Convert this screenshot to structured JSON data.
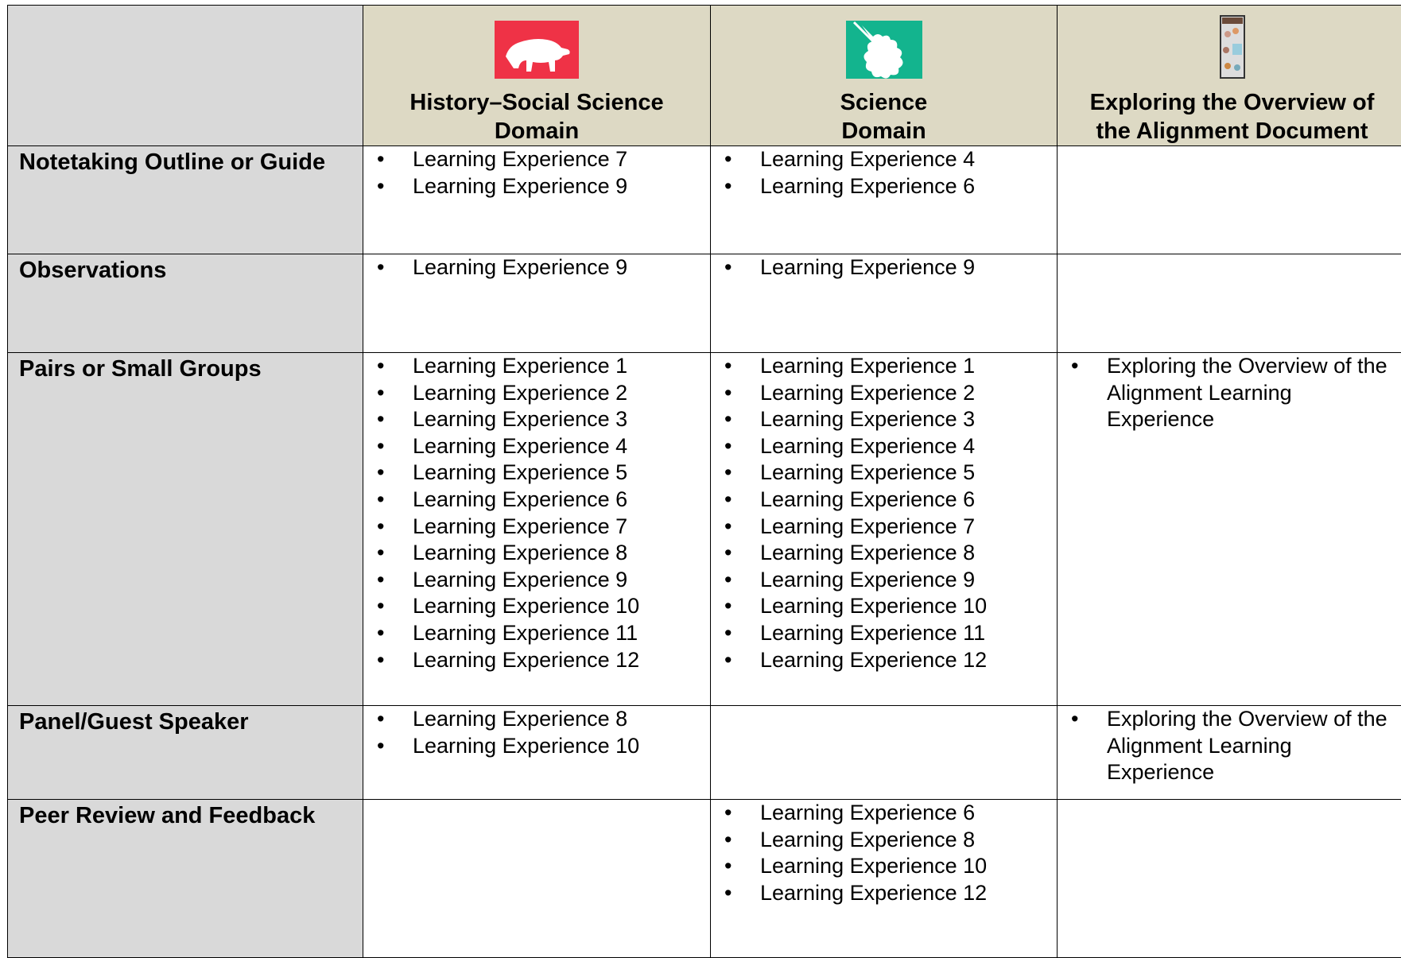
{
  "table": {
    "headers": [
      "History–Social Science\nDomain",
      "Science\nDomain",
      "Exploring the Overview of\nthe Alignment Document"
    ],
    "rows": [
      {
        "label": "Notetaking Outline or Guide",
        "cells": [
          [
            "Learning Experience 7",
            "Learning Experience 9"
          ],
          [
            "Learning Experience 4",
            "Learning Experience 6"
          ],
          []
        ]
      },
      {
        "label": "Observations",
        "cells": [
          [
            "Learning Experience 9"
          ],
          [
            "Learning Experience 9"
          ],
          []
        ]
      },
      {
        "label": "Pairs or Small Groups",
        "cells": [
          [
            "Learning Experience 1",
            "Learning Experience 2",
            "Learning Experience 3",
            "Learning Experience 4",
            "Learning Experience 5",
            "Learning Experience 6",
            "Learning Experience 7",
            "Learning Experience 8",
            "Learning Experience 9",
            "Learning Experience 10",
            "Learning Experience 11",
            "Learning Experience 12"
          ],
          [
            "Learning Experience 1",
            "Learning Experience 2",
            "Learning Experience 3",
            "Learning Experience 4",
            "Learning Experience 5",
            "Learning Experience 6",
            "Learning Experience 7",
            "Learning Experience 8",
            "Learning Experience 9",
            "Learning Experience 10",
            "Learning Experience 11",
            "Learning Experience 12"
          ],
          [
            "Exploring the Overview of the Alignment Learning Experience"
          ]
        ]
      },
      {
        "label": "Panel/Guest Speaker",
        "cells": [
          [
            "Learning Experience 8",
            "Learning Experience 10"
          ],
          [],
          [
            "Exploring the Overview of the Alignment Learning Experience"
          ]
        ]
      },
      {
        "label": "Peer Review and Feedback",
        "cells": [
          [],
          [
            "Learning Experience 6",
            "Learning Experience 8",
            "Learning Experience 10",
            "Learning Experience 12"
          ],
          []
        ]
      }
    ]
  }
}
